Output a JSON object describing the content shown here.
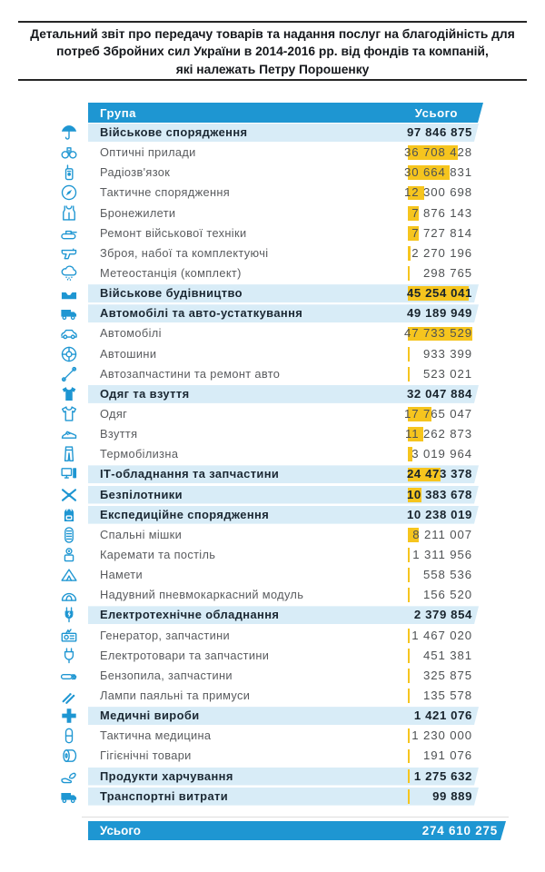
{
  "title": {
    "lines": [
      "Детальний звіт про передачу товарів та надання послуг на благодійність для",
      "потреб Збройних сил України в 2014-2016 рр. від фондів та компаній,",
      "які належать Петру Порошенку"
    ]
  },
  "colors": {
    "accent_blue": "#1E96D2",
    "band_blue": "#D8ECF7",
    "highlight_yellow": "#F6C51E",
    "category_text": "#1B2833",
    "row_text": "#595B5E"
  },
  "table": {
    "header": {
      "group": "Група",
      "total": "Усього"
    },
    "max_leaf_value": 47733529,
    "rows": [
      {
        "label": "Військове спорядження",
        "value": "97 846 875",
        "value_num": 97846875,
        "category": true,
        "bar": false,
        "icon": "umbrella-icon"
      },
      {
        "label": "Оптичні прилади",
        "value": "36 708 428",
        "value_num": 36708428,
        "category": false,
        "bar": true,
        "icon": "binoculars-icon"
      },
      {
        "label": "Радіозв'язок",
        "value": "30 664 831",
        "value_num": 30664831,
        "category": false,
        "bar": true,
        "icon": "walkie-talkie-icon"
      },
      {
        "label": "Тактичне спорядження",
        "value": "12 300 698",
        "value_num": 12300698,
        "category": false,
        "bar": true,
        "icon": "compass-icon"
      },
      {
        "label": "Бронежилети",
        "value": "7 876 143",
        "value_num": 7876143,
        "category": false,
        "bar": true,
        "icon": "body-armor-icon"
      },
      {
        "label": "Ремонт військової техніки",
        "value": "7 727 814",
        "value_num": 7727814,
        "category": false,
        "bar": true,
        "icon": "tank-icon"
      },
      {
        "label": "Зброя, набої та комплектуючі",
        "value": "2 270 196",
        "value_num": 2270196,
        "category": false,
        "bar": true,
        "icon": "pistol-icon"
      },
      {
        "label": "Метеостанція (комплект)",
        "value": "298 765",
        "value_num": 298765,
        "category": false,
        "bar": true,
        "icon": "weather-station-icon"
      },
      {
        "label": "Військове будівництво",
        "value": "45 254 041",
        "value_num": 45254041,
        "category": true,
        "bar": true,
        "icon": "bunker-icon"
      },
      {
        "label": "Автомобілі та авто-устаткування",
        "value": "49 189 949",
        "value_num": 49189949,
        "category": true,
        "bar": false,
        "icon": "truck-icon"
      },
      {
        "label": "Автомобілі",
        "value": "47 733 529",
        "value_num": 47733529,
        "category": false,
        "bar": true,
        "icon": "car-icon"
      },
      {
        "label": "Автошини",
        "value": "933 399",
        "value_num": 933399,
        "category": false,
        "bar": true,
        "icon": "tire-icon"
      },
      {
        "label": "Автозапчастини та ремонт авто",
        "value": "523 021",
        "value_num": 523021,
        "category": false,
        "bar": true,
        "icon": "repair-tools-icon"
      },
      {
        "label": "Одяг та взуття",
        "value": "32 047 884",
        "value_num": 32047884,
        "category": true,
        "bar": false,
        "icon": "tshirt-icon"
      },
      {
        "label": "Одяг",
        "value": "17 765 047",
        "value_num": 17765047,
        "category": false,
        "bar": true,
        "icon": "shirt-icon"
      },
      {
        "label": "Взуття",
        "value": "11 262 873",
        "value_num": 11262873,
        "category": false,
        "bar": true,
        "icon": "boot-icon"
      },
      {
        "label": "Термобілизна",
        "value": "3 019 964",
        "value_num": 3019964,
        "category": false,
        "bar": true,
        "icon": "pants-icon"
      },
      {
        "label": "ІТ-обладнання та запчастини",
        "value": "24 473 378",
        "value_num": 24473378,
        "category": true,
        "bar": true,
        "icon": "computer-icon"
      },
      {
        "label": "Безпілотники",
        "value": "10 383 678",
        "value_num": 10383678,
        "category": true,
        "bar": true,
        "icon": "drone-icon"
      },
      {
        "label": "Експедиційне спорядження",
        "value": "10 238 019",
        "value_num": 10238019,
        "category": true,
        "bar": false,
        "icon": "backpack-icon"
      },
      {
        "label": "Спальні мішки",
        "value": "8 211 007",
        "value_num": 8211007,
        "category": false,
        "bar": true,
        "icon": "sleeping-bag-icon"
      },
      {
        "label": "Каремати та постіль",
        "value": "1 311 956",
        "value_num": 1311956,
        "category": false,
        "bar": true,
        "icon": "camp-mat-icon"
      },
      {
        "label": "Намети",
        "value": "558 536",
        "value_num": 558536,
        "category": false,
        "bar": true,
        "icon": "tent-icon"
      },
      {
        "label": "Надувний пневмокаркасний модуль",
        "value": "156 520",
        "value_num": 156520,
        "category": false,
        "bar": true,
        "icon": "dome-tent-icon"
      },
      {
        "label": "Електротехнічне обладнання",
        "value": "2 379 854",
        "value_num": 2379854,
        "category": true,
        "bar": false,
        "icon": "electric-plug-icon"
      },
      {
        "label": "Генератор, запчастини",
        "value": "1 467 020",
        "value_num": 1467020,
        "category": false,
        "bar": true,
        "icon": "generator-icon"
      },
      {
        "label": "Електротовари та запчастини",
        "value": "451 381",
        "value_num": 451381,
        "category": false,
        "bar": true,
        "icon": "plug-icon"
      },
      {
        "label": "Бензопила, запчастини",
        "value": "325 875",
        "value_num": 325875,
        "category": false,
        "bar": true,
        "icon": "chainsaw-icon"
      },
      {
        "label": "Лампи паяльні та примуси",
        "value": "135 578",
        "value_num": 135578,
        "category": false,
        "bar": true,
        "icon": "blowtorch-icon"
      },
      {
        "label": "Медичні вироби",
        "value": "1 421 076",
        "value_num": 1421076,
        "category": true,
        "bar": false,
        "icon": "medical-cross-icon"
      },
      {
        "label": "Тактична медицина",
        "value": "1 230 000",
        "value_num": 1230000,
        "category": false,
        "bar": true,
        "icon": "pill-icon"
      },
      {
        "label": "Гігієнічні товари",
        "value": "191 076",
        "value_num": 191076,
        "category": false,
        "bar": true,
        "icon": "paper-roll-icon"
      },
      {
        "label": "Продукти харчування",
        "value": "1 275 632",
        "value_num": 1275632,
        "category": true,
        "bar": true,
        "icon": "food-hands-icon"
      },
      {
        "label": "Транспортні витрати",
        "value": "99 889",
        "value_num": 99889,
        "category": true,
        "bar": true,
        "icon": "delivery-truck-icon"
      }
    ],
    "footer": {
      "label": "Усього",
      "value": "274 610 275",
      "value_num": 274610275
    }
  },
  "chart_data": {
    "type": "table",
    "title": "Детальний звіт про передачу товарів та надання послуг на благодійність для потреб Збройних сил України в 2014-2016 рр. від фондів та компаній, які належать Петру Порошенку",
    "columns": [
      "Група",
      "Усього"
    ],
    "rows": [
      [
        "Військове спорядження",
        97846875
      ],
      [
        "Оптичні прилади",
        36708428
      ],
      [
        "Радіозв'язок",
        30664831
      ],
      [
        "Тактичне спорядження",
        12300698
      ],
      [
        "Бронежилети",
        7876143
      ],
      [
        "Ремонт військової техніки",
        7727814
      ],
      [
        "Зброя, набої та комплектуючі",
        2270196
      ],
      [
        "Метеостанція (комплект)",
        298765
      ],
      [
        "Військове будівництво",
        45254041
      ],
      [
        "Автомобілі та авто-устаткування",
        49189949
      ],
      [
        "Автомобілі",
        47733529
      ],
      [
        "Автошини",
        933399
      ],
      [
        "Автозапчастини та ремонт авто",
        523021
      ],
      [
        "Одяг та взуття",
        32047884
      ],
      [
        "Одяг",
        17765047
      ],
      [
        "Взуття",
        11262873
      ],
      [
        "Термобілизна",
        3019964
      ],
      [
        "ІТ-обладнання та запчастини",
        24473378
      ],
      [
        "Безпілотники",
        10383678
      ],
      [
        "Експедиційне спорядження",
        10238019
      ],
      [
        "Спальні мішки",
        8211007
      ],
      [
        "Каремати та постіль",
        1311956
      ],
      [
        "Намети",
        558536
      ],
      [
        "Надувний пневмокаркасний модуль",
        156520
      ],
      [
        "Електротехнічне обладнання",
        2379854
      ],
      [
        "Генератор, запчастини",
        1467020
      ],
      [
        "Електротовари та запчастини",
        451381
      ],
      [
        "Бензопила, запчастини",
        325875
      ],
      [
        "Лампи паяльні та примуси",
        135578
      ],
      [
        "Медичні вироби",
        1421076
      ],
      [
        "Тактична медицина",
        1230000
      ],
      [
        "Гігієнічні товари",
        191076
      ],
      [
        "Продукти харчування",
        1275632
      ],
      [
        "Транспортні витрати",
        99889
      ]
    ],
    "total": [
      "Усього",
      274610275
    ]
  }
}
